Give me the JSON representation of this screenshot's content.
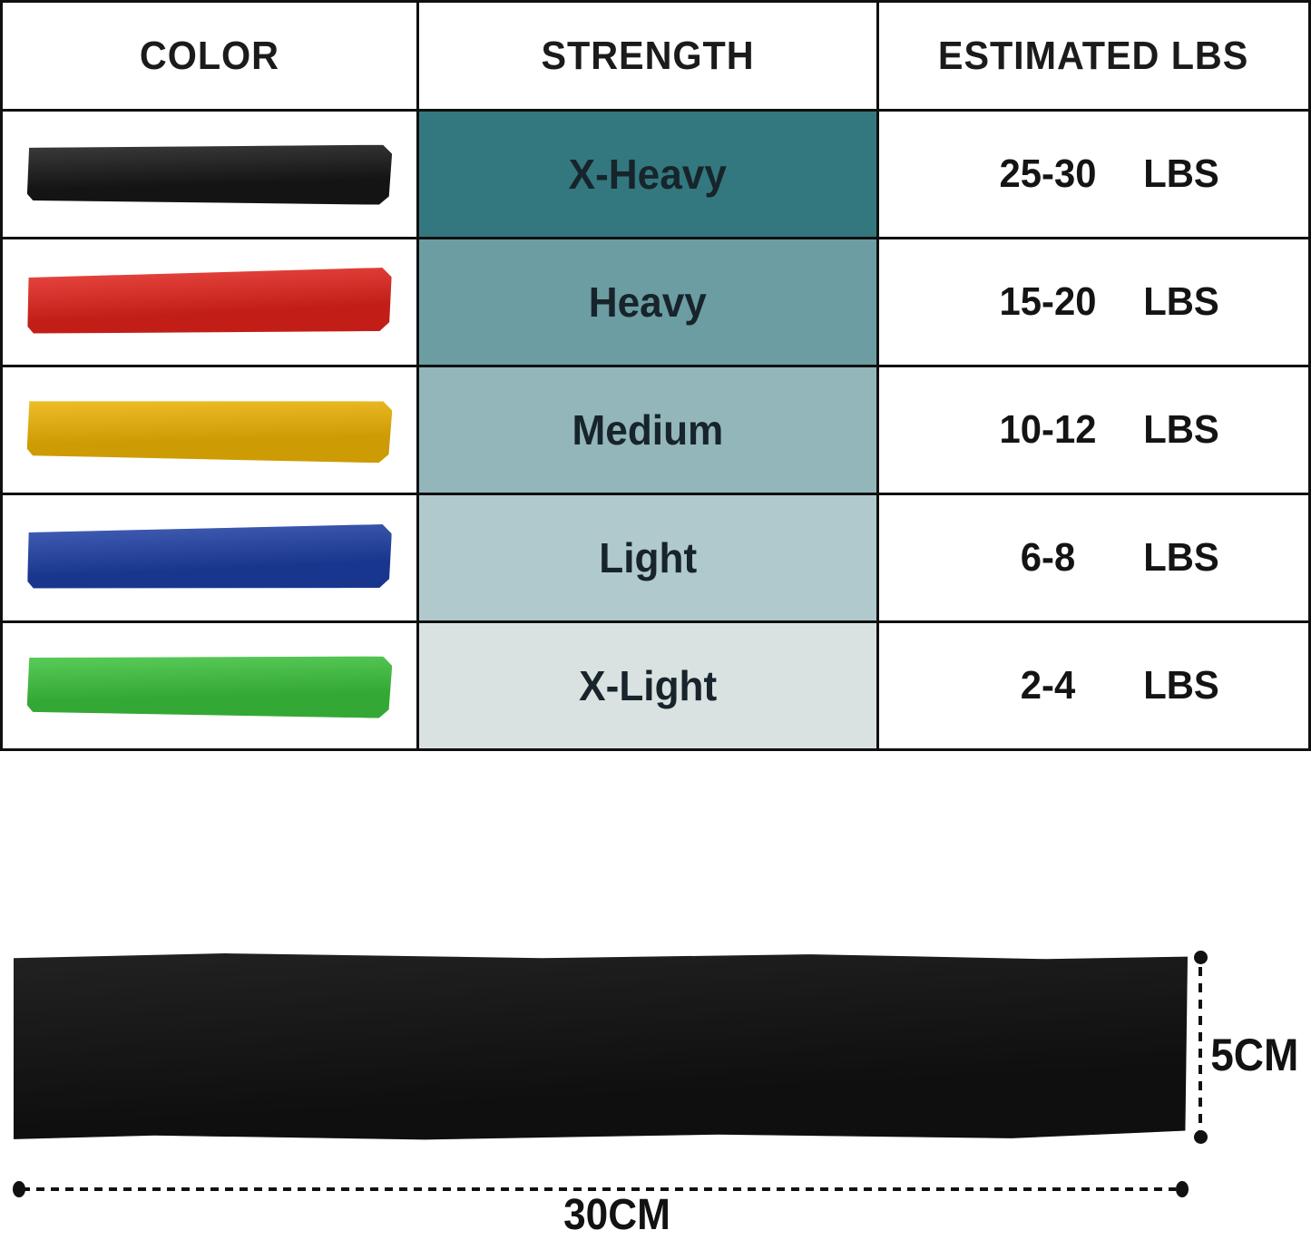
{
  "table": {
    "headers": [
      "COLOR",
      "STRENGTH",
      "ESTIMATED LBS"
    ],
    "rows": [
      {
        "color_name": "black",
        "band_color": "#171717",
        "strength": "X-Heavy",
        "strength_bg": "#33787e",
        "lbs_range": "25-30",
        "lbs_unit": "LBS"
      },
      {
        "color_name": "red",
        "band_color": "#e2231b",
        "strength": "Heavy",
        "strength_bg": "#6c9da2",
        "lbs_range": "15-20",
        "lbs_unit": "LBS"
      },
      {
        "color_name": "yellow",
        "band_color": "#efb404",
        "strength": "Medium",
        "strength_bg": "#93b6ba",
        "lbs_range": "10-12",
        "lbs_unit": "LBS"
      },
      {
        "color_name": "blue",
        "band_color": "#1d3fa5",
        "strength": "Light",
        "strength_bg": "#b0c9cc",
        "lbs_range": "6-8",
        "lbs_unit": "LBS"
      },
      {
        "color_name": "green",
        "band_color": "#3cc43c",
        "strength": "X-Light",
        "strength_bg": "#dae2e1",
        "lbs_range": "2-4",
        "lbs_unit": "LBS"
      }
    ]
  },
  "diagram": {
    "band_color": "#141414",
    "height_label": "5CM",
    "width_label": "30CM"
  }
}
